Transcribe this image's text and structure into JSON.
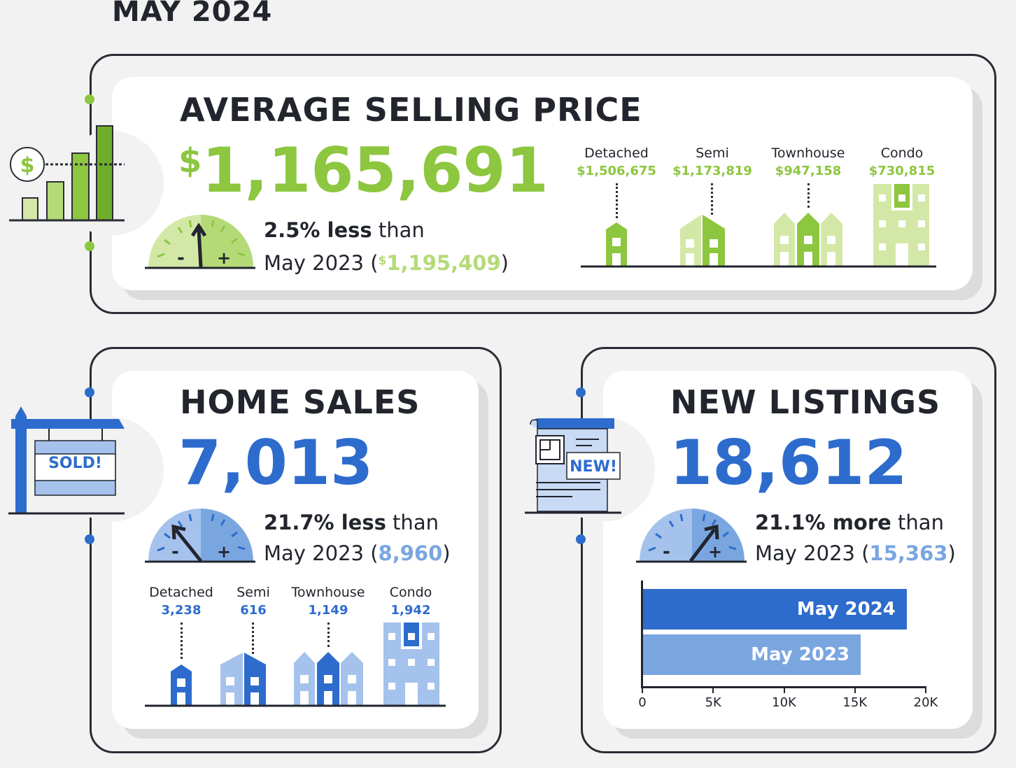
{
  "title": "MAY 2024",
  "colors": {
    "green": "#8dc63f",
    "light_green": "#d3e8a6",
    "blue": "#2d6ccd",
    "light_blue": "#a4c2ec",
    "dark": "#22252d"
  },
  "avg_price": {
    "heading": "AVERAGE SELLING PRICE",
    "currency": "$",
    "value": "1,165,691",
    "change": "2.5% less",
    "than": " than",
    "prev_label": "May 2023 (",
    "prev_currency": "$",
    "prev_value": "1,195,409",
    "close": ")",
    "types": [
      {
        "label": "Detached",
        "value": "$1,506,675"
      },
      {
        "label": "Semi",
        "value": "$1,173,819"
      },
      {
        "label": "Townhouse",
        "value": "$947,158"
      },
      {
        "label": "Condo",
        "value": "$730,815"
      }
    ],
    "icon": "dollar-bar-chart-icon",
    "gauge": {
      "minus": "-",
      "plus": "+"
    }
  },
  "home_sales": {
    "heading": "HOME SALES",
    "value": "7,013",
    "change": "21.7% less",
    "than": " than",
    "prev_label": "May 2023 (",
    "prev_value": "8,960",
    "close": ")",
    "sign": "SOLD!",
    "types": [
      {
        "label": "Detached",
        "value": "3,238"
      },
      {
        "label": "Semi",
        "value": "616"
      },
      {
        "label": "Townhouse",
        "value": "1,149"
      },
      {
        "label": "Condo",
        "value": "1,942"
      }
    ],
    "gauge": {
      "minus": "-",
      "plus": "+"
    }
  },
  "new_listings": {
    "heading": "NEW LISTINGS",
    "value": "18,612",
    "change": "21.1% more",
    "than": " than",
    "prev_label": "May 2023 (",
    "prev_value": "15,363",
    "close": ")",
    "badge": "NEW!",
    "gauge": {
      "minus": "-",
      "plus": "+"
    }
  },
  "chart_data": {
    "type": "bar",
    "orientation": "horizontal",
    "title": "New Listings",
    "categories": [
      "May 2024",
      "May 2023"
    ],
    "values": [
      18612,
      15363
    ],
    "xlim": [
      0,
      20000
    ],
    "xticks": [
      "0",
      "5K",
      "10K",
      "15K",
      "20K"
    ],
    "colors": [
      "#2d6ccd",
      "#7aa6e0"
    ]
  }
}
